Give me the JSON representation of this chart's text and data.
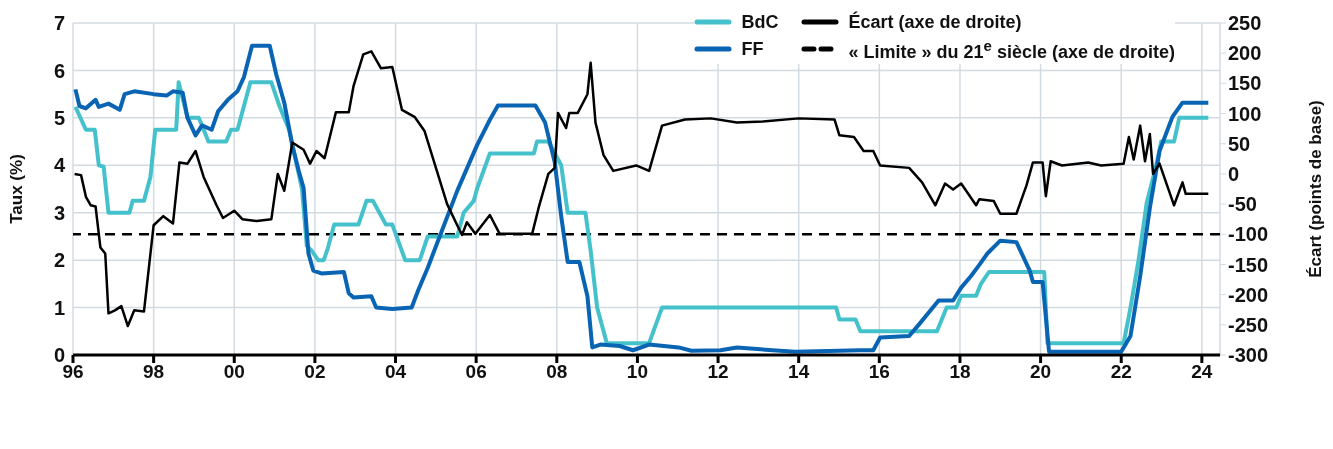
{
  "chart_data": {
    "type": "line",
    "xlabel": null,
    "ylabel": "Taux (%)",
    "y2label": "Écart (points de base)",
    "xlim": [
      1996,
      2024.45
    ],
    "xticks": [
      {
        "value": 1996,
        "label": "96"
      },
      {
        "value": 1998,
        "label": "98"
      },
      {
        "value": 2000,
        "label": "00"
      },
      {
        "value": 2002,
        "label": "02"
      },
      {
        "value": 2004,
        "label": "04"
      },
      {
        "value": 2006,
        "label": "06"
      },
      {
        "value": 2008,
        "label": "08"
      },
      {
        "value": 2010,
        "label": "10"
      },
      {
        "value": 2012,
        "label": "12"
      },
      {
        "value": 2014,
        "label": "14"
      },
      {
        "value": 2016,
        "label": "16"
      },
      {
        "value": 2018,
        "label": "18"
      },
      {
        "value": 2020,
        "label": "20"
      },
      {
        "value": 2022,
        "label": "22"
      },
      {
        "value": 2024,
        "label": "24"
      }
    ],
    "ylim": [
      0,
      7
    ],
    "yticks": [
      0,
      1,
      2,
      3,
      4,
      5,
      6,
      7
    ],
    "y2lim": [
      -300,
      250
    ],
    "y2ticks": [
      -300,
      -250,
      -200,
      -150,
      -100,
      -50,
      0,
      50,
      100,
      150,
      200,
      250
    ],
    "grid": true,
    "legend": "top right",
    "marker": "none",
    "line_style": "solid",
    "series": [
      {
        "name": "BdC",
        "color": "#45c1cb",
        "x": [
          1996.06,
          1996.32,
          1996.54,
          1996.64,
          1996.76,
          1996.88,
          1997.4,
          1997.48,
          1997.76,
          1997.92,
          1998.04,
          1998.56,
          1998.62,
          1998.84,
          1999.12,
          1999.36,
          1999.8,
          1999.92,
          2000.08,
          2000.24,
          2000.4,
          2000.92,
          2001.12,
          2001.36,
          2001.68,
          2001.8,
          2001.92,
          2002.08,
          2002.22,
          2002.32,
          2002.48,
          2003.08,
          2003.28,
          2003.44,
          2003.76,
          2003.92,
          2004.24,
          2004.6,
          2004.8,
          2005.05,
          2005.53,
          2005.69,
          2005.94,
          2006.02,
          2006.34,
          2007.43,
          2007.51,
          2007.79,
          2008.11,
          2008.27,
          2008.71,
          2008.84,
          2009.0,
          2009.24,
          2010.29,
          2010.61,
          2014.93,
          2015.01,
          2015.41,
          2015.53,
          2017.43,
          2017.67,
          2017.91,
          2018.03,
          2018.4,
          2018.52,
          2018.72,
          2020.09,
          2020.17,
          2022.06,
          2022.23,
          2022.43,
          2022.63,
          2022.87,
          2022.99,
          2023.31,
          2023.44,
          2024.16
        ],
        "values": [
          5.23,
          4.75,
          4.75,
          4.0,
          3.97,
          3.0,
          3.0,
          3.25,
          3.25,
          3.75,
          4.75,
          4.75,
          5.75,
          5.0,
          5.0,
          4.5,
          4.5,
          4.75,
          4.75,
          5.25,
          5.75,
          5.75,
          5.25,
          4.75,
          3.5,
          2.3,
          2.2,
          2.0,
          2.0,
          2.25,
          2.75,
          2.75,
          3.25,
          3.25,
          2.75,
          2.75,
          2.0,
          2.0,
          2.5,
          2.5,
          2.5,
          3.0,
          3.25,
          3.5,
          4.25,
          4.25,
          4.5,
          4.5,
          4.0,
          3.0,
          3.0,
          2.2,
          1.0,
          0.25,
          0.25,
          1.0,
          1.0,
          0.75,
          0.75,
          0.5,
          0.5,
          1.0,
          1.0,
          1.25,
          1.25,
          1.5,
          1.75,
          1.75,
          0.25,
          0.25,
          1.0,
          2.0,
          3.2,
          4.0,
          4.5,
          4.5,
          5.0,
          5.0
        ]
      },
      {
        "name": "FF",
        "color": "#0a64b4",
        "x": [
          1996.06,
          1996.16,
          1996.32,
          1996.56,
          1996.64,
          1996.88,
          1997.16,
          1997.28,
          1997.52,
          1998.0,
          1998.32,
          1998.48,
          1998.72,
          1998.84,
          1999.04,
          1999.2,
          1999.44,
          1999.6,
          1999.84,
          2000.08,
          2000.24,
          2000.44,
          2000.88,
          2001.04,
          2001.24,
          2001.44,
          2001.6,
          2001.72,
          2001.84,
          2001.96,
          2002.16,
          2002.72,
          2002.84,
          2002.96,
          2003.4,
          2003.52,
          2003.92,
          2004.4,
          2004.56,
          2004.8,
          2005.05,
          2005.53,
          2006.02,
          2006.34,
          2006.54,
          2007.47,
          2007.71,
          2007.95,
          2008.11,
          2008.27,
          2008.56,
          2008.76,
          2008.88,
          2009.08,
          2009.56,
          2009.89,
          2010.29,
          2011.02,
          2011.34,
          2012.06,
          2012.47,
          2013.35,
          2013.92,
          2015.53,
          2015.85,
          2016.02,
          2016.74,
          2016.98,
          2017.47,
          2017.83,
          2018.03,
          2018.27,
          2018.48,
          2018.68,
          2019.0,
          2019.4,
          2019.73,
          2019.81,
          2020.05,
          2020.21,
          2022.0,
          2022.23,
          2022.47,
          2022.71,
          2022.95,
          2023.27,
          2023.52,
          2024.16
        ],
        "values": [
          5.6,
          5.25,
          5.2,
          5.38,
          5.23,
          5.3,
          5.17,
          5.5,
          5.56,
          5.5,
          5.47,
          5.56,
          5.53,
          5.0,
          4.63,
          4.84,
          4.75,
          5.14,
          5.38,
          5.56,
          5.86,
          6.52,
          6.52,
          5.92,
          5.32,
          4.42,
          3.88,
          3.52,
          2.14,
          1.78,
          1.72,
          1.75,
          1.3,
          1.21,
          1.24,
          1.0,
          0.97,
          1.0,
          1.36,
          1.84,
          2.4,
          3.46,
          4.42,
          4.96,
          5.26,
          5.26,
          4.9,
          4.06,
          2.92,
          1.96,
          1.96,
          1.24,
          0.16,
          0.22,
          0.19,
          0.1,
          0.22,
          0.16,
          0.09,
          0.1,
          0.16,
          0.1,
          0.07,
          0.1,
          0.1,
          0.37,
          0.4,
          0.64,
          1.15,
          1.15,
          1.42,
          1.66,
          1.9,
          2.14,
          2.41,
          2.38,
          1.78,
          1.54,
          1.54,
          0.07,
          0.07,
          0.4,
          1.66,
          3.1,
          4.3,
          5.02,
          5.32,
          5.32
        ]
      },
      {
        "name": "Écart (axe de droite)",
        "color": "#000000",
        "axis": "y2",
        "x": [
          1996.04,
          1996.2,
          1996.32,
          1996.44,
          1996.56,
          1996.68,
          1996.8,
          1996.88,
          1997.04,
          1997.2,
          1997.36,
          1997.52,
          1997.76,
          1998.0,
          1998.24,
          1998.48,
          1998.64,
          1998.84,
          1999.04,
          1999.24,
          1999.56,
          1999.72,
          2000.0,
          2000.2,
          2000.56,
          2000.92,
          2001.08,
          2001.24,
          2001.44,
          2001.72,
          2001.88,
          2002.04,
          2002.24,
          2002.52,
          2002.84,
          2002.96,
          2003.2,
          2003.4,
          2003.64,
          2003.92,
          2004.16,
          2004.48,
          2004.72,
          2005.28,
          2005.53,
          2005.65,
          2005.77,
          2005.98,
          2006.34,
          2006.58,
          2007.39,
          2007.55,
          2007.79,
          2007.95,
          2008.03,
          2008.23,
          2008.31,
          2008.52,
          2008.76,
          2008.84,
          2008.96,
          2009.16,
          2009.4,
          2009.97,
          2010.29,
          2010.61,
          2011.18,
          2011.82,
          2012.47,
          2013.11,
          2014.0,
          2014.89,
          2015.01,
          2015.37,
          2015.61,
          2015.85,
          2016.02,
          2016.74,
          2017.06,
          2017.39,
          2017.63,
          2017.83,
          2018.03,
          2018.4,
          2018.48,
          2018.84,
          2019.0,
          2019.4,
          2019.65,
          2019.81,
          2020.05,
          2020.13,
          2020.25,
          2020.53,
          2021.18,
          2021.5,
          2022.06,
          2022.19,
          2022.31,
          2022.47,
          2022.59,
          2022.71,
          2022.79,
          2022.95,
          2023.31,
          2023.52,
          2023.6,
          2024.16
        ],
        "values": [
          0,
          -2,
          -38,
          -52,
          -54,
          -122,
          -132,
          -231,
          -226,
          -219,
          -252,
          -226,
          -228,
          -85,
          -70,
          -82,
          19,
          17,
          38,
          -5,
          -52,
          -73,
          -61,
          -75,
          -78,
          -75,
          0,
          -28,
          52,
          40,
          17,
          38,
          26,
          102,
          102,
          146,
          198,
          203,
          175,
          177,
          106,
          94,
          71,
          -50,
          -85,
          -101,
          -80,
          -99,
          -68,
          -99,
          -99,
          -56,
          0,
          10,
          101,
          76,
          101,
          101,
          132,
          184,
          85,
          31,
          5,
          14,
          5,
          80,
          90,
          92,
          85,
          87,
          92,
          90,
          64,
          61,
          38,
          38,
          14,
          10,
          -14,
          -52,
          -16,
          -26,
          -16,
          -52,
          -42,
          -45,
          -66,
          -66,
          -19,
          19,
          19,
          -37,
          21,
          14,
          19,
          14,
          17,
          61,
          24,
          80,
          21,
          66,
          0,
          17,
          -52,
          -14,
          -33,
          -33
        ]
      }
    ],
    "ref_lines": [
      {
        "axis": "y2",
        "value": -100,
        "label": "« Limite » du 21$^{e}$ siècle (axe de droite)",
        "color": "#000000",
        "line_style": "dashed"
      }
    ]
  }
}
